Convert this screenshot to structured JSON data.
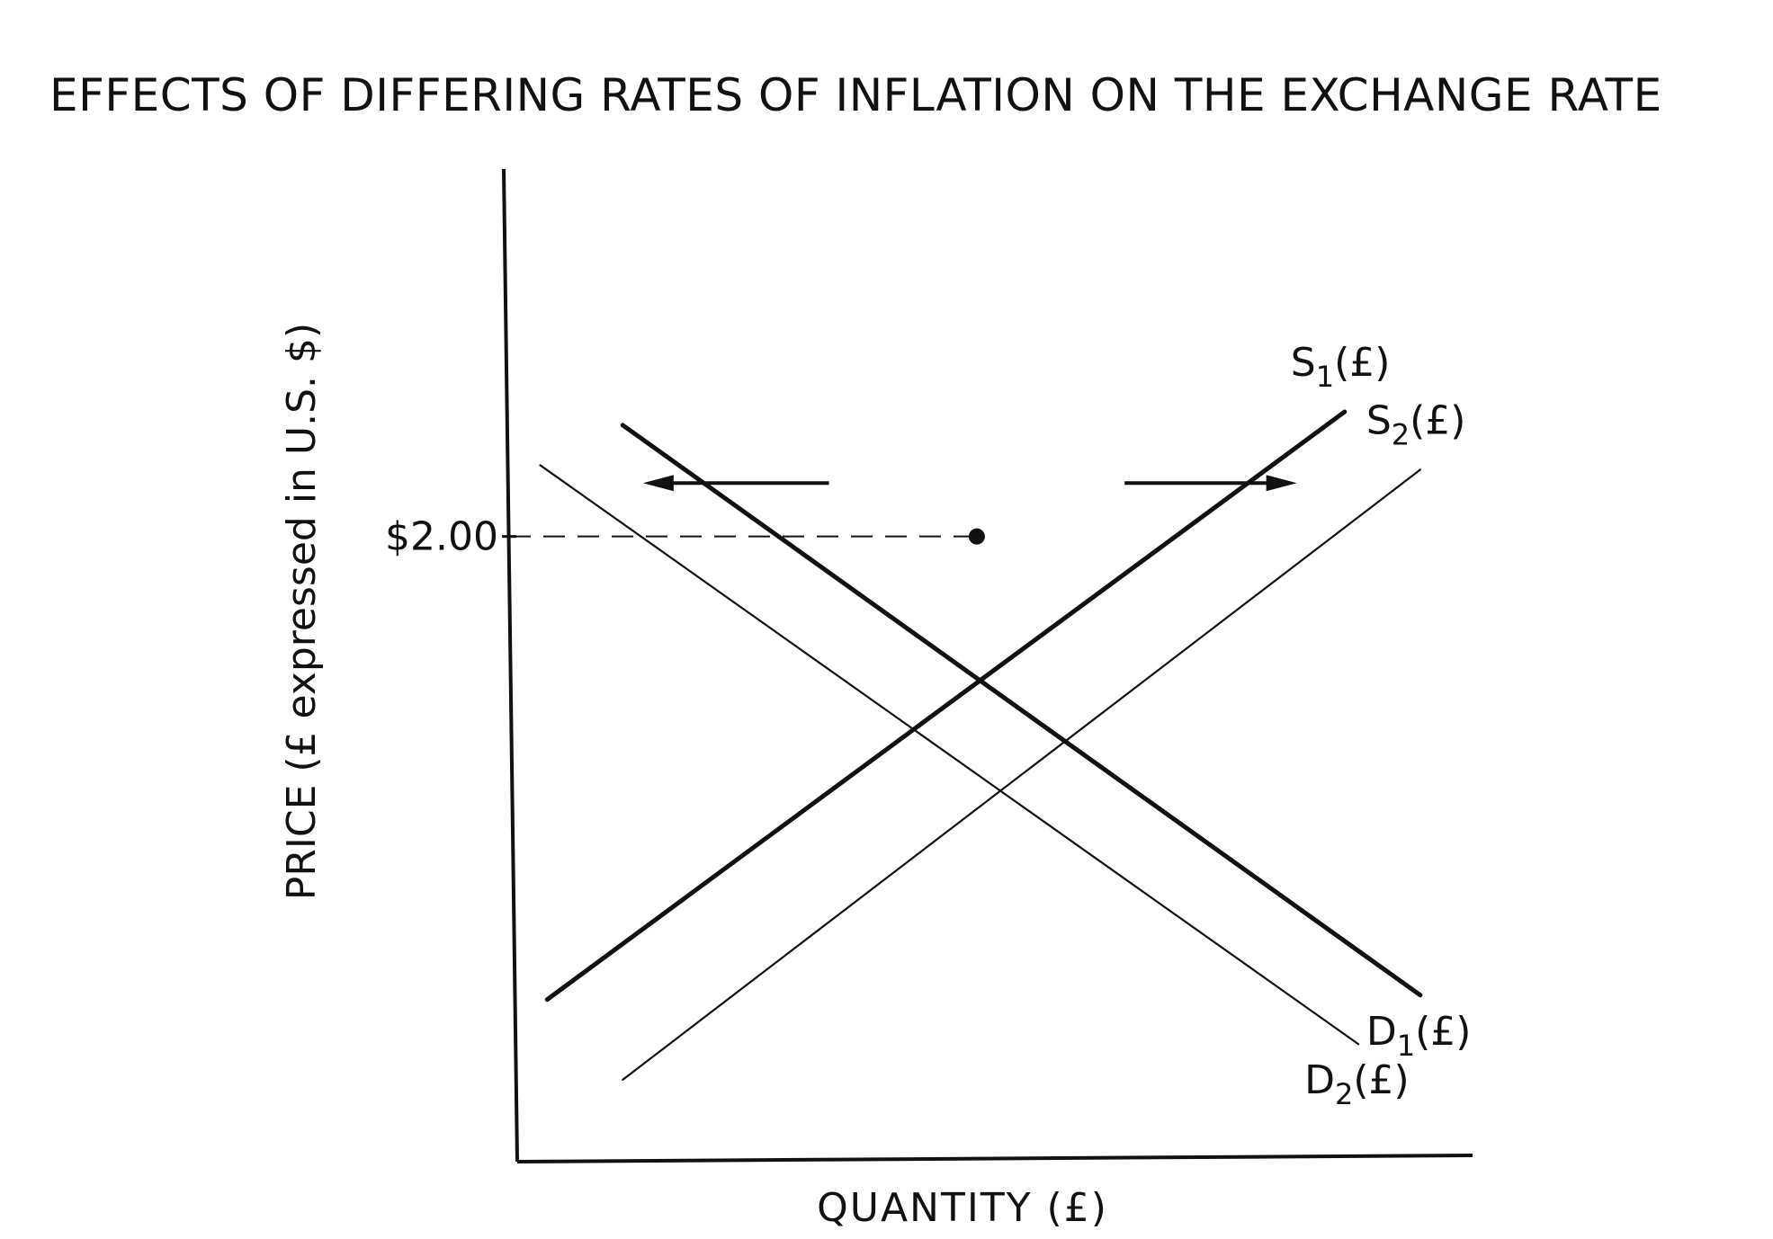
{
  "chart_data": {
    "type": "line",
    "title": "EFFECTS OF DIFFERING RATES OF INFLATION ON THE EXCHANGE RATE",
    "xlabel": "QUANTITY (£)",
    "ylabel": "PRICE (£ expressed in U.S. $)",
    "grid": false,
    "reference_line": {
      "label": "$2.00",
      "y": 2.0
    },
    "series": [
      {
        "name": "S₁(£)",
        "kind": "supply",
        "weight": "heavy",
        "points": [
          [
            0.05,
            0.96
          ],
          [
            1.21,
            2.28
          ]
        ]
      },
      {
        "name": "S₂(£)",
        "kind": "supply",
        "weight": "light",
        "points": [
          [
            0.16,
            0.78
          ],
          [
            1.32,
            2.15
          ]
        ]
      },
      {
        "name": "D₁(£)",
        "kind": "demand",
        "weight": "heavy",
        "points": [
          [
            0.16,
            2.25
          ],
          [
            1.32,
            0.97
          ]
        ]
      },
      {
        "name": "D₂(£)",
        "kind": "demand",
        "weight": "light",
        "points": [
          [
            0.04,
            2.16
          ],
          [
            1.23,
            0.86
          ]
        ]
      }
    ],
    "equilibrium_points": [
      {
        "x": 0.675,
        "y": 2.0,
        "marker": "dot"
      },
      {
        "x": 0.44,
        "y": 1.71,
        "marker": "none"
      },
      {
        "x": 0.79,
        "y": 1.36,
        "marker": "none"
      },
      {
        "x": 0.91,
        "y": 1.55,
        "marker": "none"
      }
    ],
    "shift_arrows": [
      {
        "direction": "left",
        "from": [
          0.46,
          2.12
        ],
        "to": [
          0.2,
          2.12
        ]
      },
      {
        "direction": "right",
        "from": [
          0.89,
          2.12
        ],
        "to": [
          1.13,
          2.12
        ]
      }
    ],
    "xlim": [
      0,
      1.4
    ],
    "ylim": [
      0.6,
      2.7
    ]
  }
}
